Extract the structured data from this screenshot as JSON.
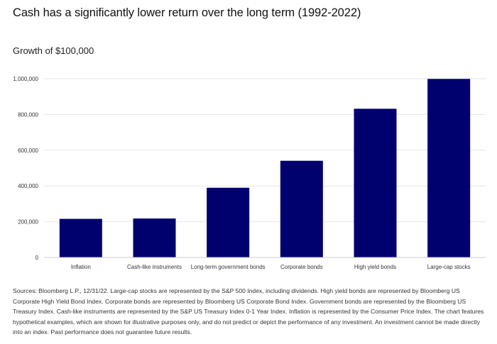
{
  "page": {
    "title": "Cash has a significantly lower return over the long term (1992-2022)",
    "footnote": "Sources: Bloomberg L.P., 12/31/22. Large-cap stocks are represented by the S&P 500 Index, including dividends. High yield bonds are represented by Bloomberg US Corporate High Yield Bond Index. Corporate bonds are represented by Bloomberg US Corporate Bond Index. Government bonds are represented by the Bloomberg US Treasury Index. Cash-like instruments are represented by the S&P US Treasury Index 0-1 Year Index. Inflation is represented by the Consumer Price Index. The chart features hypothetical examples, which are shown for illustrative purposes only, and do not predict or depict the performance of any investment. An investment cannot be made directly into an index. Past performance does not guarantee future results."
  },
  "chart_data": {
    "type": "bar",
    "title": "Cash has a significantly lower return over the long term (1992-2022)",
    "subtitle": "Growth of $100,000",
    "xlabel": "",
    "ylabel": "",
    "categories": [
      "Inflation",
      "Cash-like instruments",
      "Long-term government bonds",
      "Corporate bonds",
      "High yield bonds",
      "Large-cap stocks"
    ],
    "values": [
      216000,
      218000,
      390000,
      541000,
      832000,
      999000
    ],
    "ylim": [
      0,
      1000000
    ],
    "yticks": [
      0,
      200000,
      400000,
      600000,
      800000,
      1000000
    ],
    "ytick_labels": [
      "0",
      "200,000",
      "400,000",
      "600,000",
      "800,000",
      "1,000,000"
    ],
    "grid": true,
    "bar_color": "#00006f",
    "grid_color": "#e6e6e6"
  }
}
